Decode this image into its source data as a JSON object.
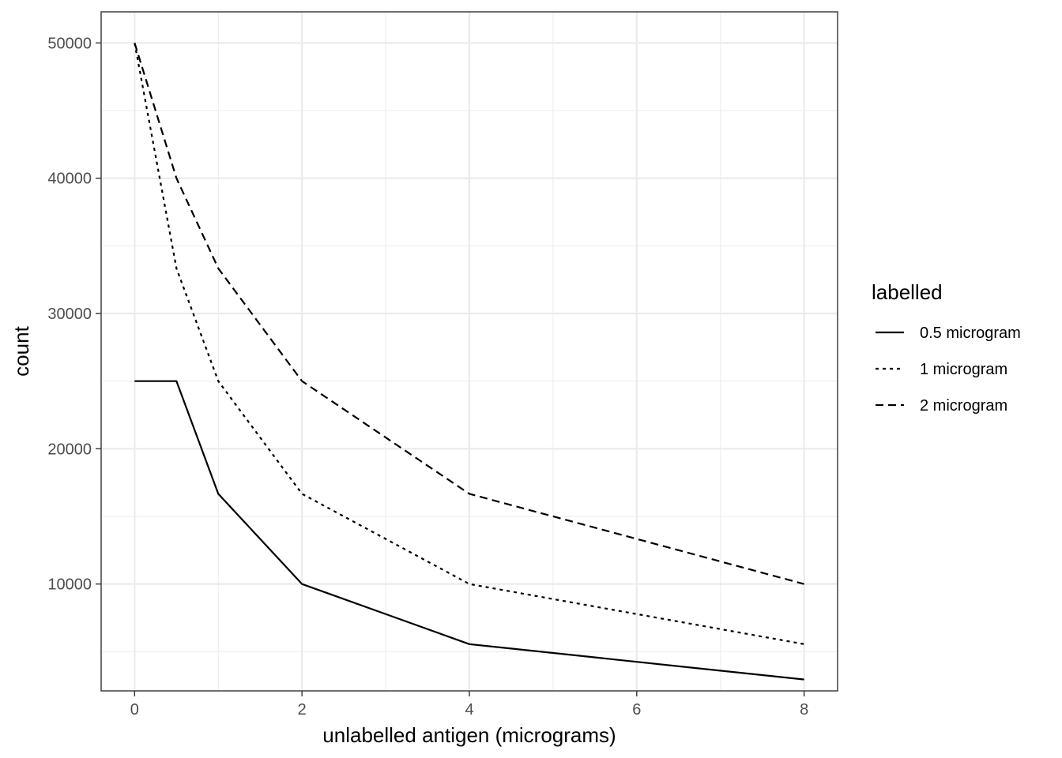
{
  "chart_data": {
    "type": "line",
    "xlabel": "unlabelled antigen (micrograms)",
    "ylabel": "count",
    "x": [
      0,
      0.5,
      1,
      2,
      4,
      8
    ],
    "xlim": [
      -0.4,
      8.4
    ],
    "ylim": [
      2100,
      52300
    ],
    "x_ticks": [
      0,
      2,
      4,
      6,
      8
    ],
    "y_ticks": [
      10000,
      20000,
      30000,
      40000,
      50000
    ],
    "x_tick_labels": [
      "0",
      "2",
      "4",
      "6",
      "8"
    ],
    "y_tick_labels": [
      "10000",
      "20000",
      "30000",
      "40000",
      "50000"
    ],
    "grid": true,
    "legend": {
      "title": "labelled",
      "position": "right"
    },
    "series": [
      {
        "name": "0.5 microgram",
        "linetype": "solid",
        "values": [
          25000,
          25000,
          16667,
          10000,
          5556,
          2941
        ]
      },
      {
        "name": "1 microgram",
        "linetype": "dotted",
        "values": [
          50000,
          33333,
          25000,
          16667,
          10000,
          5556
        ]
      },
      {
        "name": "2 microgram",
        "linetype": "dashed",
        "values": [
          50000,
          40000,
          33333,
          25000,
          16667,
          10000
        ]
      }
    ],
    "colors": {
      "line": "#000000",
      "grid_major": "#ebebeb",
      "panel_border": "#333333",
      "tick_text": "#4d4d4d"
    }
  }
}
